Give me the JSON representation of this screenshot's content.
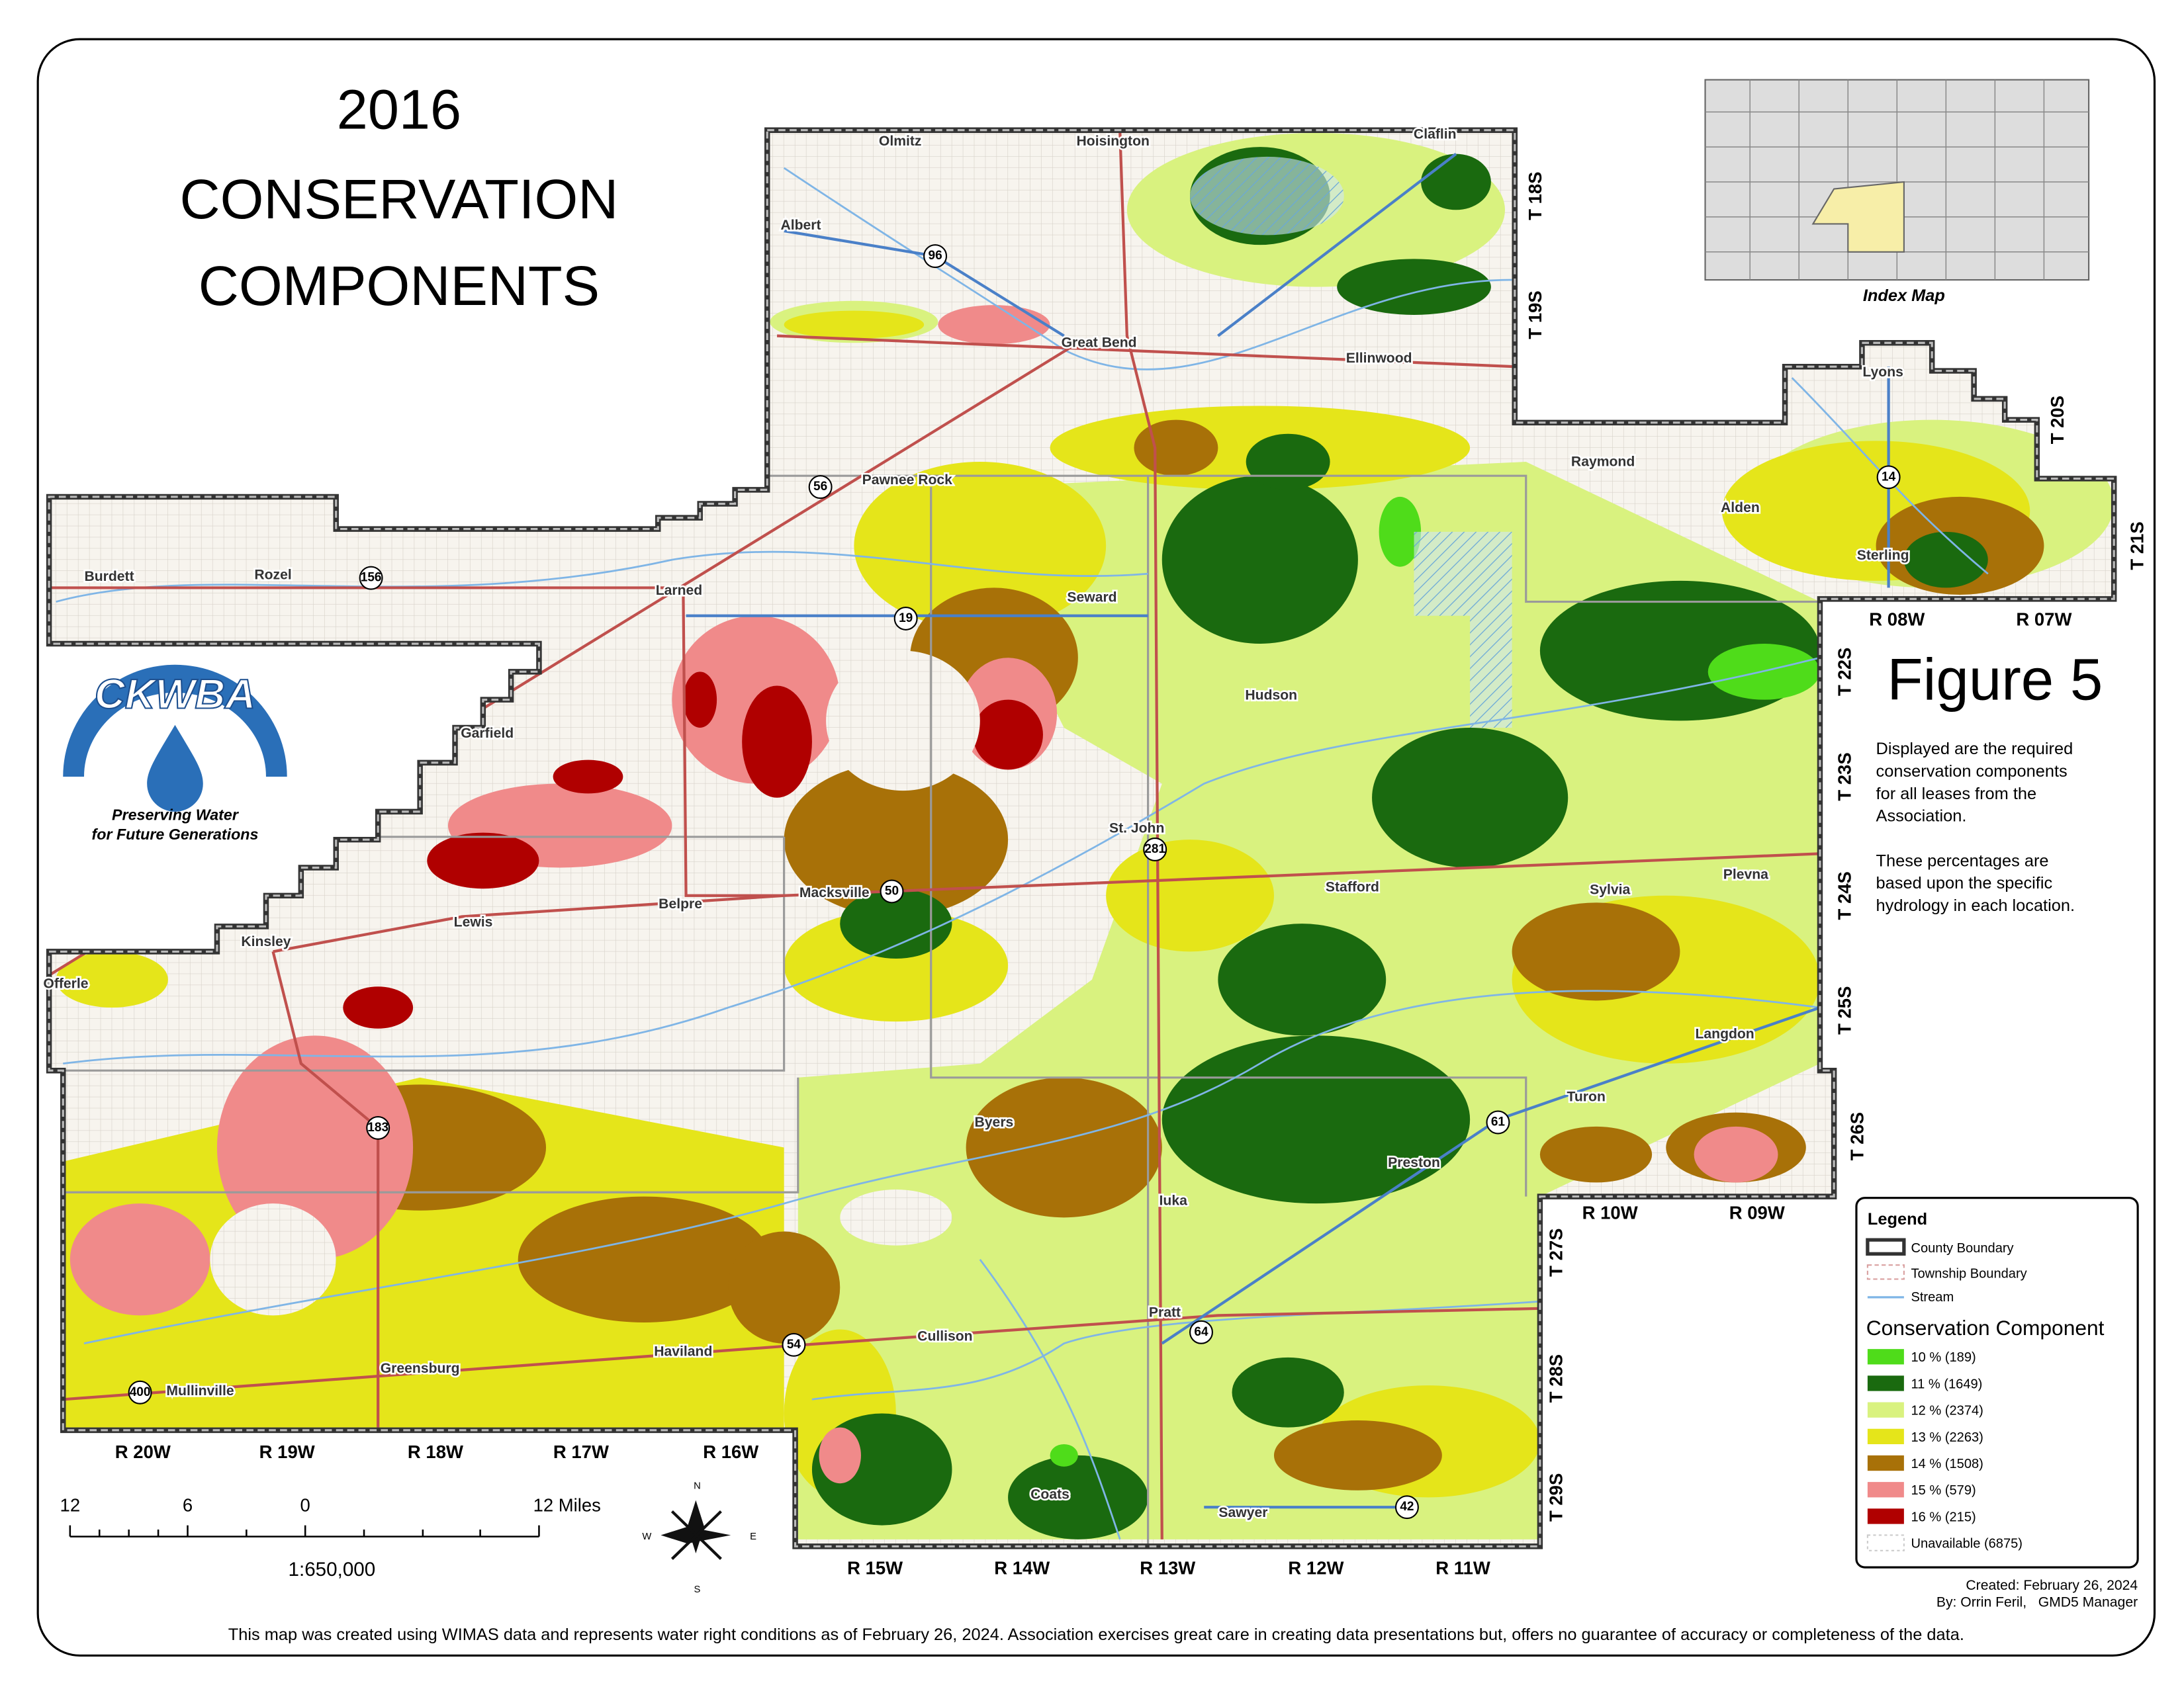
{
  "title": [
    "2016",
    "CONSERVATION",
    "COMPONENTS"
  ],
  "figure": "Figure 5",
  "description": [
    "Displayed are the required",
    "conservation components",
    "for all leases from the",
    "Association.",
    "These percentages are",
    "based upon the specific",
    "hydrology in each location."
  ],
  "index_map_label": "Index Map",
  "logo": {
    "name": "CKWBA",
    "tagline": [
      "Preserving Water",
      "for Future Generations"
    ]
  },
  "towns": [
    "Olmitz",
    "Hoisington",
    "Claflin",
    "Albert",
    "Great Bend",
    "Ellinwood",
    "Pawnee Rock",
    "Raymond",
    "Alden",
    "Lyons",
    "Sterling",
    "Burdett",
    "Rozel",
    "Larned",
    "Seward",
    "Hudson",
    "Garfield",
    "St. John",
    "Macksville",
    "Stafford",
    "Sylvia",
    "Plevna",
    "Belpre",
    "Lewis",
    "Kinsley",
    "Offerle",
    "Langdon",
    "Turon",
    "Byers",
    "Preston",
    "Iuka",
    "Pratt",
    "Cullison",
    "Haviland",
    "Greensburg",
    "Mullinville",
    "Coats",
    "Sawyer"
  ],
  "highways": [
    "96",
    "56",
    "156",
    "19",
    "281",
    "50",
    "183",
    "54",
    "64",
    "61",
    "400",
    "14",
    "42"
  ],
  "ranges": [
    "R 20W",
    "R 19W",
    "R 18W",
    "R 17W",
    "R 16W",
    "R 15W",
    "R 14W",
    "R 13W",
    "R 12W",
    "R 11W",
    "R 10W",
    "R 09W",
    "R 08W",
    "R 07W"
  ],
  "townships": [
    "T 18S",
    "T 19S",
    "T 20S",
    "T 21S",
    "T 22S",
    "T 23S",
    "T 24S",
    "T 25S",
    "T 26S",
    "T 27S",
    "T 28S",
    "T 29S"
  ],
  "legend": {
    "title": "Legend",
    "boundaries": [
      "County Boundary",
      "Township Boundary",
      "Stream"
    ],
    "components_title": "Conservation Component",
    "components": [
      "10 % (189)",
      "11 % (1649)",
      "12 % (2374)",
      "13 % (2263)",
      "14 % (1508)",
      "15 % (579)",
      "16 % (215)",
      "Unavailable (6875)"
    ]
  },
  "scale": {
    "ticks": [
      "12",
      "6",
      "0",
      "12 Miles"
    ],
    "ratio": "1:650,000"
  },
  "compass": [
    "N",
    "E",
    "S",
    "W"
  ],
  "credits": [
    "Created: February 26, 2024",
    "By: Orrin Feril,   GMD5 Manager"
  ],
  "footer": "This map was created using WIMAS data and represents water right conditions as of February 26, 2024. Association exercises great care in creating data presentations but, offers no guarantee of accuracy or completeness of the data."
}
